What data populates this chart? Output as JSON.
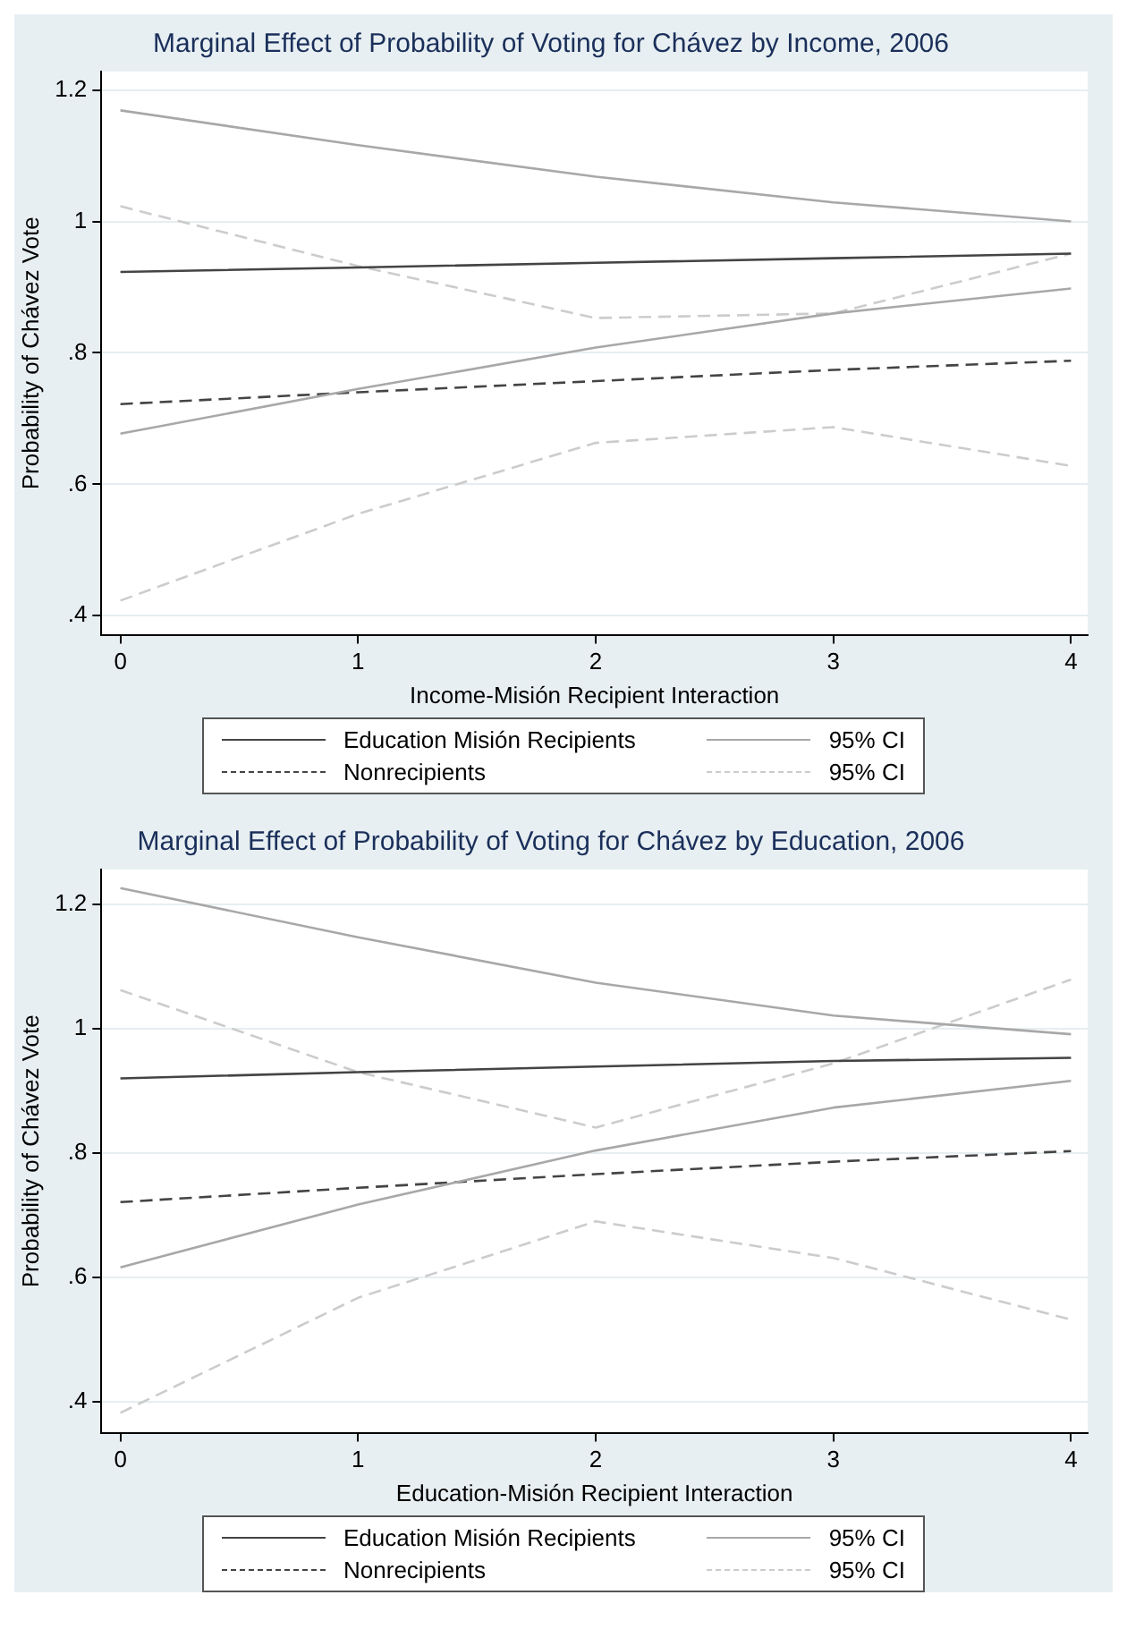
{
  "chart_data": [
    {
      "type": "line",
      "title": "Marginal Effect of Probability of Voting for Chávez by Income, 2006",
      "xlabel": "Income-Misión Recipient Interaction",
      "ylabel": "Probability of Chávez Vote",
      "x": [
        0,
        1,
        2,
        3,
        4
      ],
      "xlim": [
        -0.08,
        4.07
      ],
      "xticks": [
        0,
        1,
        2,
        3,
        4
      ],
      "ylim": [
        0.371,
        1.228
      ],
      "yticks": [
        {
          "value": 0.4,
          "label": ".4"
        },
        {
          "value": 0.6,
          "label": ".6"
        },
        {
          "value": 0.8,
          "label": ".8"
        },
        {
          "value": 1,
          "label": "1"
        },
        {
          "value": 1.2,
          "label": "1.2"
        }
      ],
      "grid": "y",
      "legend": "bottom",
      "marker": "none",
      "series": [
        {
          "name": "Education Misión Recipients",
          "color": "#444444",
          "line_style": "solid",
          "values": [
            0.923,
            0.93,
            0.937,
            0.944,
            0.951
          ]
        },
        {
          "name": "95% CI",
          "color": "#a8a8a8",
          "line_style": "solid",
          "values": [
            1.169,
            1.116,
            1.068,
            1.029,
            1.0
          ]
        },
        {
          "color": "#a8a8a8",
          "line_style": "solid",
          "values": [
            0.677,
            0.745,
            0.808,
            0.86,
            0.898
          ]
        },
        {
          "name": "Nonrecipients",
          "color": "#444444",
          "line_style": "dashed",
          "values": [
            0.722,
            0.74,
            0.757,
            0.774,
            0.788
          ]
        },
        {
          "name": "95% CI",
          "color": "#cccccc",
          "line_style": "dashed",
          "values": [
            1.023,
            0.932,
            0.853,
            0.86,
            0.951
          ]
        },
        {
          "color": "#cccccc",
          "line_style": "dashed",
          "values": [
            0.423,
            0.555,
            0.663,
            0.687,
            0.628
          ]
        }
      ]
    },
    {
      "type": "line",
      "title": "Marginal Effect of Probability of Voting for Chávez by Education, 2006",
      "xlabel": "Education-Misión Recipient Interaction",
      "ylabel": "Probability of Chávez Vote",
      "x": [
        0,
        1,
        2,
        3,
        4
      ],
      "xlim": [
        -0.08,
        4.07
      ],
      "xticks": [
        0,
        1,
        2,
        3,
        4
      ],
      "ylim": [
        0.35,
        1.256
      ],
      "yticks": [
        {
          "value": 0.4,
          "label": ".4"
        },
        {
          "value": 0.6,
          "label": ".6"
        },
        {
          "value": 0.8,
          "label": ".8"
        },
        {
          "value": 1,
          "label": "1"
        },
        {
          "value": 1.2,
          "label": "1.2"
        }
      ],
      "grid": "y",
      "legend": "bottom",
      "marker": "none",
      "series": [
        {
          "name": "Education Misión Recipients",
          "color": "#444444",
          "line_style": "solid",
          "values": [
            0.92,
            0.93,
            0.939,
            0.948,
            0.953
          ]
        },
        {
          "name": "95% CI",
          "color": "#a8a8a8",
          "line_style": "solid",
          "values": [
            1.226,
            1.147,
            1.074,
            1.021,
            0.991
          ]
        },
        {
          "color": "#a8a8a8",
          "line_style": "solid",
          "values": [
            0.616,
            0.717,
            0.804,
            0.873,
            0.916
          ]
        },
        {
          "name": "Nonrecipients",
          "color": "#444444",
          "line_style": "dashed",
          "values": [
            0.721,
            0.744,
            0.766,
            0.786,
            0.803
          ]
        },
        {
          "name": "95% CI",
          "color": "#cccccc",
          "line_style": "dashed",
          "values": [
            1.062,
            0.93,
            0.841,
            0.944,
            1.079
          ]
        },
        {
          "color": "#cccccc",
          "line_style": "dashed",
          "values": [
            0.382,
            0.567,
            0.69,
            0.631,
            0.532
          ]
        }
      ]
    }
  ]
}
